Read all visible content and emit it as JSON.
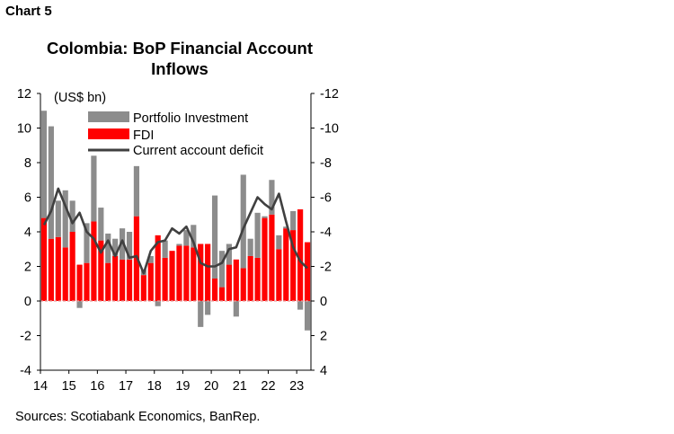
{
  "header": {
    "chart_label": "Chart 5"
  },
  "footer": {
    "source": "Sources: Scotiabank Economics, BanRep."
  },
  "colors": {
    "portfolio": "#8c8c8c",
    "fdi": "#ff0000",
    "deficit": "#404040"
  },
  "chart_data": {
    "type": "bar",
    "title": "Colombia: BoP Financial Account Inflows",
    "unit_label": "(US$ bn)",
    "stacked": true,
    "secondary_axis_reversed": true,
    "y_left": {
      "min": -4,
      "max": 12,
      "ticks": [
        "-4",
        "-2",
        "0",
        "2",
        "4",
        "6",
        "8",
        "10",
        "12"
      ]
    },
    "y_right": {
      "min": -12,
      "max": 4,
      "ticks": [
        "4",
        "2",
        "0",
        "-2",
        "-4",
        "-6",
        "-8",
        "-10",
        "-12"
      ]
    },
    "x_tick_labels": [
      "14",
      "15",
      "16",
      "17",
      "18",
      "19",
      "20",
      "21",
      "22",
      "23"
    ],
    "legend": [
      "Portfolio Investment",
      "FDI",
      "Current account deficit"
    ],
    "series": [
      {
        "name": "Portfolio Investment",
        "type": "bar",
        "values": [
          6.2,
          6.5,
          2.1,
          3.3,
          1.8,
          -0.4,
          2.3,
          3.8,
          1.9,
          1.7,
          1.0,
          1.8,
          1.6,
          2.9,
          0.3,
          0.4,
          -0.3,
          1.0,
          0.0,
          0.1,
          0.9,
          1.3,
          -1.5,
          -0.8,
          4.8,
          2.1,
          1.2,
          -0.9,
          5.4,
          1.0,
          2.6,
          0.1,
          2.0,
          0.8,
          0.1,
          1.1,
          -0.5,
          -1.7
        ]
      },
      {
        "name": "FDI",
        "type": "bar",
        "values": [
          4.8,
          3.6,
          3.7,
          3.1,
          4.0,
          2.1,
          2.2,
          4.6,
          3.5,
          2.2,
          2.6,
          2.4,
          2.4,
          4.9,
          1.5,
          2.2,
          3.8,
          2.5,
          2.9,
          3.2,
          3.2,
          3.1,
          3.3,
          3.3,
          1.3,
          0.8,
          2.1,
          2.4,
          1.9,
          2.6,
          2.5,
          4.8,
          5.0,
          3.0,
          4.2,
          4.1,
          5.3,
          3.4
        ]
      },
      {
        "name": "Current account deficit",
        "type": "line",
        "axis": "right",
        "values": [
          -4.4,
          -5.2,
          -6.5,
          -5.5,
          -4.5,
          -5.1,
          -4.0,
          -3.6,
          -2.8,
          -3.5,
          -2.6,
          -3.5,
          -2.5,
          -2.6,
          -1.6,
          -2.9,
          -3.4,
          -3.5,
          -4.2,
          -3.9,
          -4.3,
          -3.4,
          -2.2,
          -2.0,
          -2.0,
          -2.2,
          -3.0,
          -3.1,
          -4.2,
          -5.1,
          -6.0,
          -5.6,
          -5.3,
          -6.2,
          -4.6,
          -3.1,
          -2.3,
          -1.9
        ]
      }
    ]
  }
}
